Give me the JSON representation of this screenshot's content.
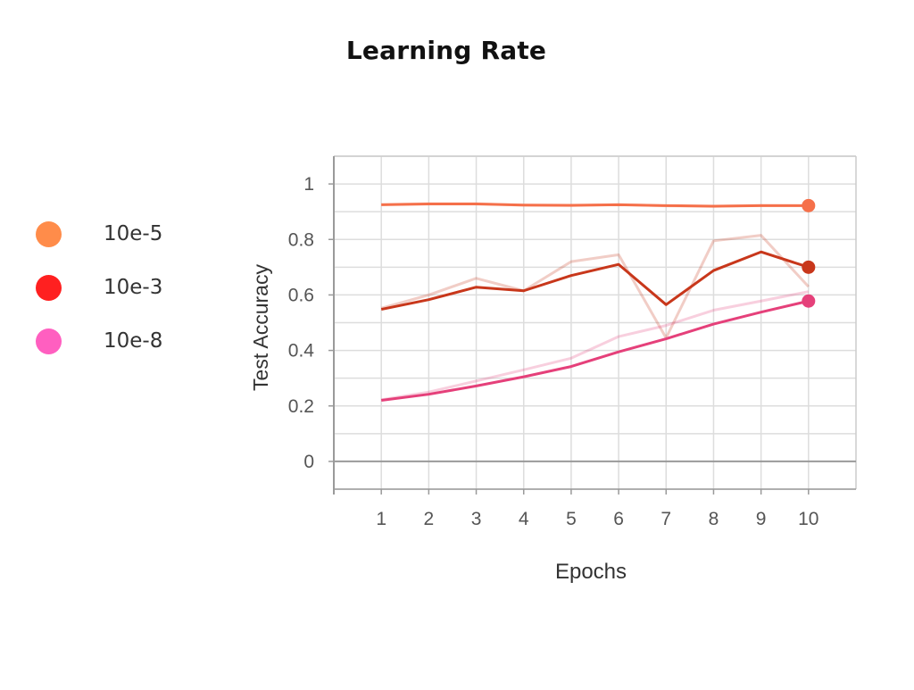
{
  "chart_data": {
    "type": "line",
    "title": "Learning Rate",
    "xlabel": "Epochs",
    "ylabel": "Test Accuracy",
    "x": [
      1,
      2,
      3,
      4,
      5,
      6,
      7,
      8,
      9,
      10
    ],
    "xlim": [
      0,
      11
    ],
    "ylim": [
      -0.1,
      1.1
    ],
    "yticks": [
      0,
      0.2,
      0.4,
      0.6,
      0.8,
      1
    ],
    "ytick_labels": [
      "0",
      "0.2",
      "0.4",
      "0.6",
      "0.8",
      "1"
    ],
    "xtick_labels": [
      "1",
      "2",
      "3",
      "4",
      "5",
      "6",
      "7",
      "8",
      "9",
      "10"
    ],
    "grid": true,
    "legend_position": "left",
    "series": [
      {
        "name": "10e-5",
        "color": "#F5704A",
        "legend_color": "#FF8C4A",
        "values": [
          0.925,
          0.928,
          0.928,
          0.924,
          0.923,
          0.925,
          0.922,
          0.92,
          0.922,
          0.922
        ],
        "raw_values": [
          0.926,
          0.929,
          0.929,
          0.923,
          0.922,
          0.926,
          0.921,
          0.919,
          0.923,
          0.922
        ]
      },
      {
        "name": "10e-3",
        "color": "#C8371B",
        "legend_color": "#FF2020",
        "values": [
          0.548,
          0.583,
          0.628,
          0.615,
          0.67,
          0.71,
          0.565,
          0.688,
          0.755,
          0.7
        ],
        "raw_values": [
          0.552,
          0.6,
          0.66,
          0.615,
          0.72,
          0.745,
          0.445,
          0.795,
          0.815,
          0.63
        ]
      },
      {
        "name": "10e-8",
        "color": "#E5407A",
        "legend_color": "#FF5FC0",
        "values": [
          0.22,
          0.242,
          0.272,
          0.305,
          0.342,
          0.395,
          0.442,
          0.495,
          0.538,
          0.578
        ],
        "raw_values": [
          0.222,
          0.25,
          0.29,
          0.33,
          0.372,
          0.45,
          0.49,
          0.545,
          0.578,
          0.612
        ]
      }
    ]
  },
  "legend": [
    {
      "label": "10e-5",
      "color": "#FF8C4A"
    },
    {
      "label": "10e-3",
      "color": "#FF2020"
    },
    {
      "label": "10e-8",
      "color": "#FF5FC0"
    }
  ]
}
